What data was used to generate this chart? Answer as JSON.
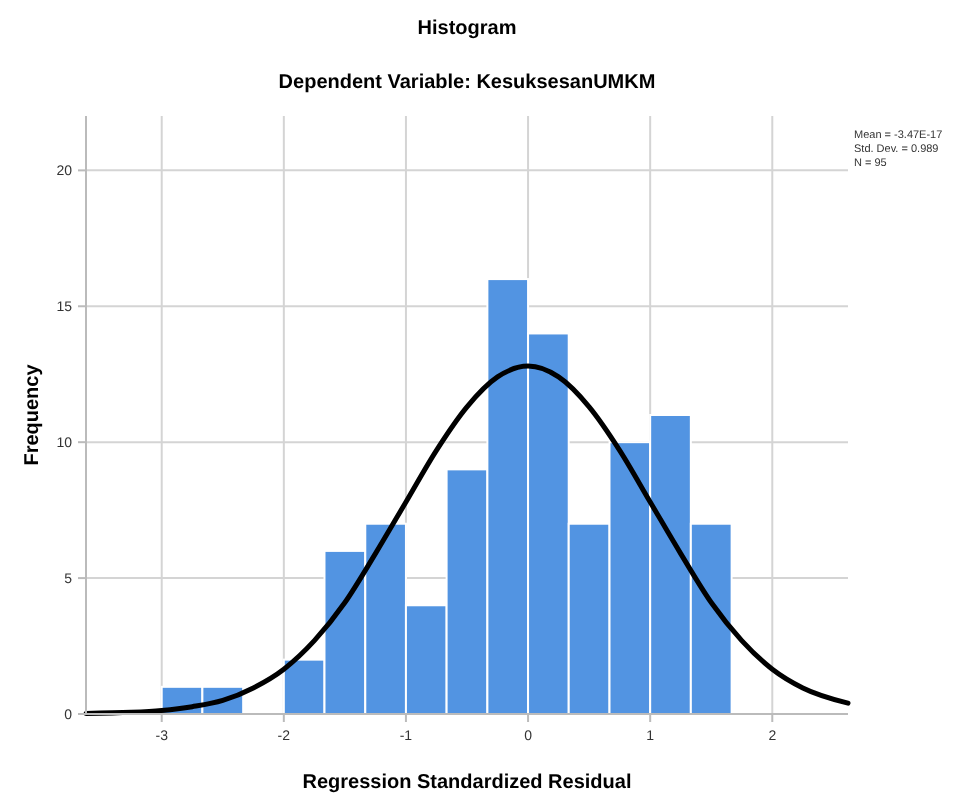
{
  "chart_data": {
    "type": "histogram",
    "title": "Histogram",
    "subtitle": "Dependent Variable: KesuksesanUMKM",
    "xlabel": "Regression Standardized Residual",
    "ylabel": "Frequency",
    "bins": [
      -3,
      -2.667,
      -2.333,
      -2,
      -1.667,
      -1.333,
      -1,
      -0.667,
      -0.333,
      0,
      0.333,
      0.667,
      1,
      1.333,
      1.667
    ],
    "values": [
      1,
      1,
      0,
      2,
      6,
      7,
      4,
      9,
      16,
      14,
      7,
      10,
      11,
      7
    ],
    "color": "#5294e2",
    "xlim": [
      -3.62,
      2.62
    ],
    "xticks": [
      -3,
      -2,
      -1,
      0,
      1,
      2
    ],
    "ylim": [
      0,
      22
    ],
    "yticks": [
      0,
      5,
      10,
      15,
      20
    ],
    "grid": true,
    "annotations": [
      "Mean = -3.47E-17",
      "Std. Dev. = 0.989",
      "N = 95"
    ],
    "series": [
      {
        "type": "line",
        "color": "#000000",
        "x": [
          -3.62,
          -3.25,
          -3,
          -2.75,
          -2.5,
          -2.25,
          -2,
          -1.75,
          -1.5,
          -1.25,
          -1,
          -0.75,
          -0.5,
          -0.25,
          0,
          0.25,
          0.5,
          0.75,
          1,
          1.25,
          1.5,
          1.75,
          2,
          2.25,
          2.62
        ],
        "values": [
          0.02,
          0.06,
          0.13,
          0.27,
          0.5,
          0.96,
          1.65,
          2.7,
          4.1,
          5.9,
          7.8,
          9.7,
          11.3,
          12.4,
          12.8,
          12.4,
          11.3,
          9.7,
          7.8,
          5.9,
          4.1,
          2.7,
          1.65,
          0.96,
          0.4
        ]
      }
    ]
  }
}
